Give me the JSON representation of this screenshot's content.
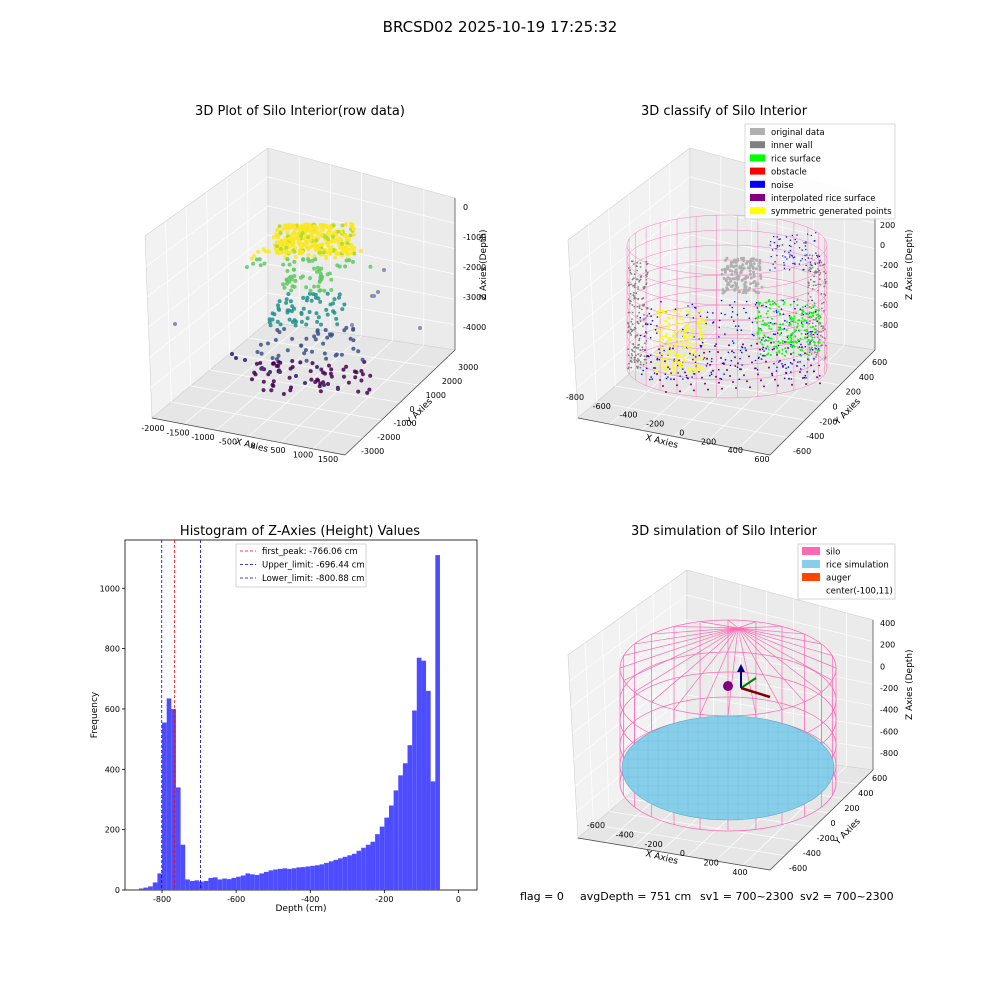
{
  "figure": {
    "suptitle": "BRCSD02 2025-10-19 17:25:32",
    "footer": {
      "flag": "flag = 0",
      "avg_depth": "avgDepth = 751 cm",
      "sv1": "sv1 = 700~2300",
      "sv2": "sv2 = 700~2300"
    }
  },
  "colors": {
    "histogram_bar": "#4d4dff",
    "first_peak_line": "#ff0000",
    "limit_line": "#0000cc",
    "silo_wire": "#ff69b4",
    "rice_sim": "#87ceeb",
    "auger": "#ff4500",
    "original_data": "#b0b0b0",
    "inner_wall": "#808080",
    "rice_surface": "#00ff00",
    "obstacle": "#ff0000",
    "noise": "#0000ff",
    "interpolated_rice_surface": "#800080",
    "symmetric_generated_points": "#ffff00"
  },
  "chart_data": [
    {
      "type": "scatter",
      "title": "3D Plot of Silo Interior(row data)",
      "xlabel": "X Axies",
      "ylabel": "Y Axies",
      "zlabel": "Z Axies (Depth)",
      "x_ticks": [
        "-2000",
        "-1500",
        "-1000",
        "-500",
        "0",
        "500",
        "1000",
        "1500"
      ],
      "y_ticks": [
        "3000",
        "2000",
        "1000",
        "0",
        "-1000",
        "-2000",
        "-3000"
      ],
      "z_ticks": [
        "0",
        "-1000",
        "-2000",
        "-3000",
        "-4000"
      ],
      "colormap": "viridis"
    },
    {
      "type": "scatter",
      "title": "3D classify of Silo Interior",
      "xlabel": "X Axies",
      "ylabel": "Y Axies",
      "zlabel": "Z Axies (Depth)",
      "x_ticks": [
        "-800",
        "-600",
        "-400",
        "-200",
        "0",
        "200",
        "400",
        "600"
      ],
      "y_ticks": [
        "600",
        "400",
        "200",
        "0",
        "-200",
        "-400",
        "-600"
      ],
      "z_ticks": [
        "200",
        "0",
        "-200",
        "-400",
        "-600",
        "-800"
      ],
      "legend_position": "top-right",
      "legend": [
        {
          "label": "original data",
          "color": "#b0b0b0"
        },
        {
          "label": "inner wall",
          "color": "#808080"
        },
        {
          "label": "rice surface",
          "color": "#00ff00"
        },
        {
          "label": "obstacle",
          "color": "#ff0000"
        },
        {
          "label": "noise",
          "color": "#0000ff"
        },
        {
          "label": "interpolated rice surface",
          "color": "#800080"
        },
        {
          "label": "symmetric generated points",
          "color": "#ffff00"
        }
      ]
    },
    {
      "type": "bar",
      "title": "Histogram of Z-Axies (Height) Values",
      "xlabel": "Depth (cm)",
      "ylabel": "Frequency",
      "xlim": [
        -900,
        50
      ],
      "ylim": [
        0,
        1160
      ],
      "x_ticks": [
        -800,
        -600,
        -400,
        -200,
        0
      ],
      "y_ticks": [
        0,
        200,
        400,
        600,
        800,
        1000
      ],
      "bin_width": 12.5,
      "bins_start": [
        -862.5,
        -850,
        -837.5,
        -825,
        -812.5,
        -800,
        -787.5,
        -775,
        -762.5,
        -750,
        -737.5,
        -725,
        -712.5,
        -700,
        -687.5,
        -675,
        -662.5,
        -650,
        -637.5,
        -625,
        -612.5,
        -600,
        -587.5,
        -575,
        -562.5,
        -550,
        -537.5,
        -525,
        -512.5,
        -500,
        -487.5,
        -475,
        -462.5,
        -450,
        -437.5,
        -425,
        -412.5,
        -400,
        -387.5,
        -375,
        -362.5,
        -350,
        -337.5,
        -325,
        -312.5,
        -300,
        -287.5,
        -275,
        -262.5,
        -250,
        -237.5,
        -225,
        -212.5,
        -200,
        -187.5,
        -175,
        -162.5,
        -150,
        -137.5,
        -125,
        -112.5,
        -100,
        -87.5,
        -75,
        -62.5,
        -50,
        -37.5,
        -25,
        -12.5
      ],
      "values": [
        5,
        8,
        12,
        25,
        55,
        555,
        635,
        600,
        340,
        150,
        35,
        30,
        32,
        28,
        30,
        40,
        42,
        35,
        38,
        36,
        40,
        44,
        48,
        55,
        52,
        50,
        55,
        60,
        65,
        68,
        70,
        72,
        70,
        72,
        75,
        76,
        78,
        80,
        82,
        85,
        90,
        95,
        100,
        105,
        110,
        115,
        120,
        130,
        140,
        150,
        160,
        185,
        210,
        240,
        280,
        330,
        380,
        420,
        480,
        595,
        770,
        760,
        660,
        360,
        1110,
        0,
        0,
        0,
        0
      ],
      "reference_lines": [
        {
          "label": "first_peak: -766.06 cm",
          "x": -766.06,
          "color": "#ff0000"
        },
        {
          "label": "Upper_limit: -696.44 cm",
          "x": -696.44,
          "color": "#0000cc"
        },
        {
          "label": "Lower_limit: -800.88 cm",
          "x": -800.88,
          "color": "#0000cc"
        }
      ],
      "legend_position": "top-center"
    },
    {
      "type": "scatter",
      "title": "3D simulation of Silo Interior",
      "xlabel": "X Axies",
      "ylabel": "Y Axies",
      "zlabel": "Z Axies (Depth)",
      "x_ticks": [
        "-600",
        "-400",
        "-200",
        "0",
        "200",
        "400"
      ],
      "y_ticks": [
        "600",
        "400",
        "200",
        "0",
        "-200",
        "-400",
        "-600"
      ],
      "z_ticks": [
        "400",
        "200",
        "0",
        "-200",
        "-400",
        "-600",
        "-800"
      ],
      "legend_position": "top-right",
      "legend": [
        {
          "label": "silo",
          "color": "#ff69b4"
        },
        {
          "label": "rice simulation",
          "color": "#87ceeb"
        },
        {
          "label": "auger",
          "color": "#ff4500"
        },
        {
          "label": "center(-100,11)",
          "color": ""
        }
      ]
    }
  ]
}
